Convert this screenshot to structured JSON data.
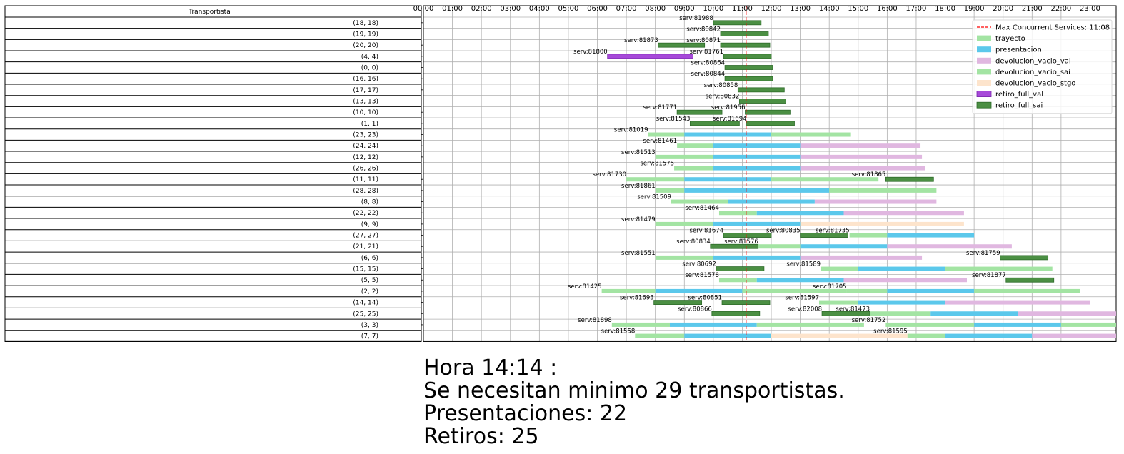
{
  "chart_data": {
    "type": "gantt",
    "table_header": "Transportista",
    "x_unit": "hours",
    "x_ticks": [
      "00:00",
      "01:00",
      "02:00",
      "03:00",
      "04:00",
      "05:00",
      "06:00",
      "07:00",
      "08:00",
      "09:00",
      "10:00",
      "11:00",
      "12:00",
      "13:00",
      "14:00",
      "15:00",
      "16:00",
      "17:00",
      "18:00",
      "19:00",
      "20:00",
      "21:00",
      "22:00",
      "23:00"
    ],
    "xlim": [
      0,
      23.9
    ],
    "grid": true,
    "legend_position": "top-right",
    "vline": {
      "label": "Max Concurrent Services: 11:08",
      "x": 11.13,
      "color": "#ff0000"
    },
    "series": [
      {
        "name": "trayecto",
        "color": "#a3e4a3"
      },
      {
        "name": "presentacion",
        "color": "#5bc8eb"
      },
      {
        "name": "devolucion_vacio_val",
        "color": "#e0b7e0"
      },
      {
        "name": "devolucion_vacio_sai",
        "color": "#a3e4a3"
      },
      {
        "name": "devolucion_vacio_stgo",
        "color": "#fde4cc"
      },
      {
        "name": "retiro_full_val",
        "color": "#a74ad9"
      },
      {
        "name": "retiro_full_sai",
        "color": "#4b8f43"
      }
    ],
    "rows": [
      {
        "label": "(18, 18)",
        "services": [
          {
            "id": "serv:81988",
            "label_x": 10.0,
            "segs": [
              [
                10.0,
                11.65,
                "retiro_full_sai"
              ]
            ]
          }
        ]
      },
      {
        "label": "(19, 19)",
        "services": [
          {
            "id": "serv:80842",
            "label_x": 10.25,
            "segs": [
              [
                10.25,
                11.9,
                "retiro_full_sai"
              ]
            ]
          }
        ]
      },
      {
        "label": "(20, 20)",
        "services": [
          {
            "id": "serv:81873",
            "label_x": 8.1,
            "segs": [
              [
                8.1,
                9.7,
                "retiro_full_sai"
              ]
            ]
          },
          {
            "id": "serv:80871",
            "label_x": 10.25,
            "segs": [
              [
                10.25,
                11.95,
                "retiro_full_sai"
              ]
            ]
          }
        ]
      },
      {
        "label": "(4, 4)",
        "services": [
          {
            "id": "serv:81800",
            "label_x": 6.35,
            "segs": [
              [
                6.35,
                9.3,
                "retiro_full_val"
              ]
            ]
          },
          {
            "id": "serv:81761",
            "label_x": 10.35,
            "segs": [
              [
                10.35,
                12.0,
                "retiro_full_sai"
              ]
            ]
          }
        ]
      },
      {
        "label": "(0, 0)",
        "services": [
          {
            "id": "serv:80864",
            "label_x": 10.4,
            "segs": [
              [
                10.4,
                12.05,
                "retiro_full_sai"
              ]
            ]
          }
        ]
      },
      {
        "label": "(16, 16)",
        "services": [
          {
            "id": "serv:80844",
            "label_x": 10.4,
            "segs": [
              [
                10.4,
                12.05,
                "retiro_full_sai"
              ]
            ]
          }
        ]
      },
      {
        "label": "(17, 17)",
        "services": [
          {
            "id": "serv:80858",
            "label_x": 10.85,
            "segs": [
              [
                10.85,
                12.45,
                "retiro_full_sai"
              ]
            ]
          }
        ]
      },
      {
        "label": "(13, 13)",
        "services": [
          {
            "id": "serv:80832",
            "label_x": 10.9,
            "segs": [
              [
                10.9,
                12.5,
                "retiro_full_sai"
              ]
            ]
          }
        ]
      },
      {
        "label": "(10, 10)",
        "services": [
          {
            "id": "serv:81771",
            "label_x": 8.75,
            "segs": [
              [
                8.75,
                10.3,
                "retiro_full_sai"
              ]
            ]
          },
          {
            "id": "serv:81956",
            "label_x": 11.1,
            "segs": [
              [
                11.1,
                12.65,
                "retiro_full_sai"
              ]
            ]
          }
        ]
      },
      {
        "label": "(1, 1)",
        "services": [
          {
            "id": "serv:81543",
            "label_x": 9.2,
            "segs": [
              [
                9.2,
                10.9,
                "retiro_full_sai"
              ]
            ]
          },
          {
            "id": "serv:81694",
            "label_x": 11.15,
            "segs": [
              [
                11.15,
                12.8,
                "retiro_full_sai"
              ]
            ]
          }
        ]
      },
      {
        "label": "(23, 23)",
        "services": [
          {
            "id": "serv:81019",
            "label_x": 7.75,
            "segs": [
              [
                7.75,
                9.0,
                "trayecto"
              ],
              [
                9.0,
                12.0,
                "presentacion"
              ],
              [
                12.0,
                14.75,
                "devolucion_vacio_sai"
              ]
            ]
          }
        ]
      },
      {
        "label": "(24, 24)",
        "services": [
          {
            "id": "serv:81461",
            "label_x": 8.75,
            "segs": [
              [
                8.75,
                10.0,
                "trayecto"
              ],
              [
                10.0,
                13.0,
                "presentacion"
              ],
              [
                13.0,
                17.15,
                "devolucion_vacio_val"
              ]
            ]
          }
        ]
      },
      {
        "label": "(12, 12)",
        "services": [
          {
            "id": "serv:81513",
            "label_x": 8.0,
            "segs": [
              [
                8.0,
                10.0,
                "trayecto"
              ],
              [
                10.0,
                13.0,
                "presentacion"
              ],
              [
                13.0,
                17.2,
                "devolucion_vacio_val"
              ]
            ]
          }
        ]
      },
      {
        "label": "(26, 26)",
        "services": [
          {
            "id": "serv:81575",
            "label_x": 8.65,
            "segs": [
              [
                8.65,
                10.0,
                "trayecto"
              ],
              [
                10.0,
                13.0,
                "presentacion"
              ],
              [
                13.0,
                17.3,
                "devolucion_vacio_val"
              ]
            ]
          }
        ]
      },
      {
        "label": "(11, 11)",
        "services": [
          {
            "id": "serv:81730",
            "label_x": 7.0,
            "segs": [
              [
                7.0,
                9.0,
                "trayecto"
              ],
              [
                9.0,
                12.0,
                "presentacion"
              ],
              [
                12.0,
                15.7,
                "devolucion_vacio_sai"
              ]
            ]
          },
          {
            "id": "serv:81865",
            "label_x": 15.95,
            "segs": [
              [
                15.95,
                17.6,
                "retiro_full_sai"
              ]
            ]
          }
        ]
      },
      {
        "label": "(28, 28)",
        "services": [
          {
            "id": "serv:81861",
            "label_x": 8.0,
            "segs": [
              [
                8.0,
                9.0,
                "trayecto"
              ],
              [
                9.0,
                14.0,
                "presentacion"
              ],
              [
                14.0,
                17.7,
                "devolucion_vacio_sai"
              ]
            ]
          }
        ]
      },
      {
        "label": "(8, 8)",
        "services": [
          {
            "id": "serv:81509",
            "label_x": 8.55,
            "segs": [
              [
                8.55,
                10.5,
                "trayecto"
              ],
              [
                10.5,
                13.5,
                "presentacion"
              ],
              [
                13.5,
                17.7,
                "devolucion_vacio_val"
              ]
            ]
          }
        ]
      },
      {
        "label": "(22, 22)",
        "services": [
          {
            "id": "serv:81464",
            "label_x": 10.2,
            "segs": [
              [
                10.2,
                11.5,
                "trayecto"
              ],
              [
                11.5,
                14.5,
                "presentacion"
              ],
              [
                14.5,
                18.65,
                "devolucion_vacio_val"
              ]
            ]
          }
        ]
      },
      {
        "label": "(9, 9)",
        "services": [
          {
            "id": "serv:81479",
            "label_x": 8.0,
            "segs": [
              [
                8.0,
                10.0,
                "trayecto"
              ],
              [
                10.0,
                13.0,
                "presentacion"
              ],
              [
                13.0,
                18.65,
                "devolucion_vacio_stgo"
              ]
            ]
          }
        ]
      },
      {
        "label": "(27, 27)",
        "services": [
          {
            "id": "serv:81674",
            "label_x": 10.35,
            "segs": [
              [
                10.35,
                12.0,
                "retiro_full_sai"
              ]
            ]
          },
          {
            "id": "serv:80835",
            "label_x": 13.0,
            "segs": [
              [
                13.0,
                14.65,
                "retiro_full_sai"
              ]
            ]
          },
          {
            "id": "serv:81735",
            "label_x": 14.7,
            "segs": [
              [
                14.7,
                16.0,
                "trayecto"
              ],
              [
                16.0,
                19.0,
                "presentacion"
              ]
            ]
          }
        ]
      },
      {
        "label": "(21, 21)",
        "services": [
          {
            "id": "serv:80834",
            "label_x": 9.9,
            "segs": [
              [
                9.9,
                11.55,
                "retiro_full_sai"
              ]
            ]
          },
          {
            "id": "serv:81576",
            "label_x": 11.55,
            "segs": [
              [
                11.55,
                13.0,
                "trayecto"
              ],
              [
                13.0,
                16.0,
                "presentacion"
              ],
              [
                16.0,
                20.3,
                "devolucion_vacio_val"
              ]
            ]
          }
        ]
      },
      {
        "label": "(6, 6)",
        "services": [
          {
            "id": "serv:81551",
            "label_x": 8.0,
            "segs": [
              [
                8.0,
                10.0,
                "trayecto"
              ],
              [
                10.0,
                13.0,
                "presentacion"
              ],
              [
                13.0,
                17.2,
                "devolucion_vacio_val"
              ]
            ]
          },
          {
            "id": "serv:81759",
            "label_x": 19.9,
            "segs": [
              [
                19.9,
                21.55,
                "retiro_full_sai"
              ]
            ]
          }
        ]
      },
      {
        "label": "(15, 15)",
        "services": [
          {
            "id": "serv:80692",
            "label_x": 10.1,
            "segs": [
              [
                10.1,
                11.75,
                "retiro_full_sai"
              ]
            ]
          },
          {
            "id": "serv:81589",
            "label_x": 13.7,
            "segs": [
              [
                13.7,
                15.0,
                "trayecto"
              ],
              [
                15.0,
                18.0,
                "presentacion"
              ],
              [
                18.0,
                21.7,
                "devolucion_vacio_sai"
              ]
            ]
          }
        ]
      },
      {
        "label": "(5, 5)",
        "services": [
          {
            "id": "serv:81578",
            "label_x": 10.2,
            "segs": [
              [
                10.2,
                11.5,
                "trayecto"
              ],
              [
                11.5,
                14.5,
                "presentacion"
              ],
              [
                14.5,
                18.75,
                "devolucion_vacio_val"
              ]
            ]
          },
          {
            "id": "serv:81877",
            "label_x": 20.1,
            "segs": [
              [
                20.1,
                21.75,
                "retiro_full_sai"
              ]
            ]
          }
        ]
      },
      {
        "label": "(2, 2)",
        "services": [
          {
            "id": "serv:81425",
            "label_x": 6.15,
            "segs": [
              [
                6.15,
                8.0,
                "trayecto"
              ],
              [
                8.0,
                11.0,
                "presentacion"
              ],
              [
                11.0,
                14.6,
                "devolucion_vacio_sai"
              ]
            ]
          },
          {
            "id": "serv:81705",
            "label_x": 14.6,
            "segs": [
              [
                14.6,
                16.0,
                "trayecto"
              ],
              [
                16.0,
                19.0,
                "presentacion"
              ],
              [
                19.0,
                22.65,
                "devolucion_vacio_sai"
              ]
            ]
          }
        ]
      },
      {
        "label": "(14, 14)",
        "services": [
          {
            "id": "serv:81693",
            "label_x": 7.95,
            "segs": [
              [
                7.95,
                9.6,
                "retiro_full_sai"
              ]
            ]
          },
          {
            "id": "serv:80851",
            "label_x": 10.3,
            "segs": [
              [
                10.3,
                11.95,
                "retiro_full_sai"
              ]
            ]
          },
          {
            "id": "serv:81597",
            "label_x": 13.65,
            "segs": [
              [
                13.65,
                15.0,
                "trayecto"
              ],
              [
                15.0,
                18.0,
                "presentacion"
              ],
              [
                18.0,
                23.0,
                "devolucion_vacio_val"
              ]
            ]
          }
        ]
      },
      {
        "label": "(25, 25)",
        "services": [
          {
            "id": "serv:80866",
            "label_x": 9.95,
            "segs": [
              [
                9.95,
                11.6,
                "retiro_full_sai"
              ]
            ]
          },
          {
            "id": "serv:82008",
            "label_x": 13.75,
            "segs": [
              [
                13.75,
                15.4,
                "retiro_full_sai"
              ]
            ]
          },
          {
            "id": "serv:81473",
            "label_x": 15.4,
            "segs": [
              [
                15.4,
                17.5,
                "trayecto"
              ],
              [
                17.5,
                20.5,
                "presentacion"
              ],
              [
                20.5,
                23.9,
                "devolucion_vacio_val"
              ]
            ]
          }
        ]
      },
      {
        "label": "(3, 3)",
        "services": [
          {
            "id": "serv:81898",
            "label_x": 6.5,
            "segs": [
              [
                6.5,
                8.5,
                "trayecto"
              ],
              [
                8.5,
                11.5,
                "presentacion"
              ],
              [
                11.5,
                15.2,
                "devolucion_vacio_sai"
              ]
            ]
          },
          {
            "id": "serv:81752",
            "label_x": 15.95,
            "segs": [
              [
                15.95,
                19.0,
                "trayecto"
              ],
              [
                19.0,
                22.0,
                "presentacion"
              ],
              [
                22.0,
                23.9,
                "devolucion_vacio_sai"
              ]
            ]
          }
        ]
      },
      {
        "label": "(7, 7)",
        "services": [
          {
            "id": "serv:81558",
            "label_x": 7.3,
            "segs": [
              [
                7.3,
                9.0,
                "trayecto"
              ],
              [
                9.0,
                12.0,
                "presentacion"
              ],
              [
                12.0,
                16.7,
                "devolucion_vacio_stgo"
              ]
            ]
          },
          {
            "id": "serv:81595",
            "label_x": 16.7,
            "segs": [
              [
                16.7,
                18.0,
                "trayecto"
              ],
              [
                18.0,
                21.0,
                "presentacion"
              ],
              [
                21.0,
                23.9,
                "devolucion_vacio_val"
              ]
            ]
          }
        ]
      }
    ]
  },
  "summary": {
    "line1": "Hora 14:14 :",
    "line2": "Se necesitan minimo 29 transportistas.",
    "line3": "Presentaciones: 22",
    "line4": "Retiros: 25"
  }
}
